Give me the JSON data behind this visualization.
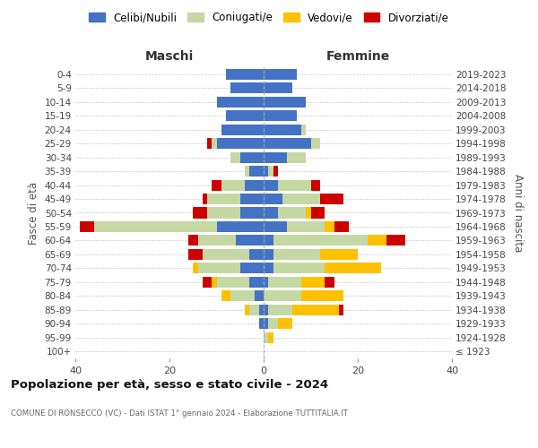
{
  "age_groups": [
    "100+",
    "95-99",
    "90-94",
    "85-89",
    "80-84",
    "75-79",
    "70-74",
    "65-69",
    "60-64",
    "55-59",
    "50-54",
    "45-49",
    "40-44",
    "35-39",
    "30-34",
    "25-29",
    "20-24",
    "15-19",
    "10-14",
    "5-9",
    "0-4"
  ],
  "birth_years": [
    "≤ 1923",
    "1924-1928",
    "1929-1933",
    "1934-1938",
    "1939-1943",
    "1944-1948",
    "1949-1953",
    "1954-1958",
    "1959-1963",
    "1964-1968",
    "1969-1973",
    "1974-1978",
    "1979-1983",
    "1984-1988",
    "1989-1993",
    "1994-1998",
    "1999-2003",
    "2004-2008",
    "2009-2013",
    "2014-2018",
    "2019-2023"
  ],
  "colors": {
    "celibi": "#4472c4",
    "coniugati": "#c5d8a4",
    "vedovi": "#ffc000",
    "divorziati": "#cc0000"
  },
  "maschi": {
    "celibi": [
      0,
      0,
      1,
      1,
      2,
      3,
      5,
      3,
      6,
      10,
      5,
      5,
      4,
      3,
      5,
      10,
      9,
      8,
      10,
      7,
      8
    ],
    "coniugati": [
      0,
      0,
      0,
      2,
      5,
      7,
      9,
      10,
      8,
      26,
      7,
      7,
      5,
      1,
      2,
      1,
      0,
      0,
      0,
      0,
      0
    ],
    "vedovi": [
      0,
      0,
      0,
      1,
      2,
      1,
      1,
      0,
      0,
      0,
      0,
      0,
      0,
      0,
      0,
      0,
      0,
      0,
      0,
      0,
      0
    ],
    "divorziati": [
      0,
      0,
      0,
      0,
      0,
      2,
      0,
      3,
      2,
      3,
      3,
      1,
      2,
      0,
      0,
      1,
      0,
      0,
      0,
      0,
      0
    ]
  },
  "femmine": {
    "nubili": [
      0,
      0,
      1,
      1,
      0,
      1,
      2,
      2,
      2,
      5,
      3,
      4,
      3,
      1,
      5,
      10,
      8,
      7,
      9,
      6,
      7
    ],
    "coniugate": [
      0,
      1,
      2,
      5,
      8,
      7,
      11,
      10,
      20,
      8,
      6,
      8,
      7,
      1,
      4,
      2,
      1,
      0,
      0,
      0,
      0
    ],
    "vedove": [
      0,
      1,
      3,
      10,
      9,
      5,
      12,
      8,
      4,
      2,
      1,
      0,
      0,
      0,
      0,
      0,
      0,
      0,
      0,
      0,
      0
    ],
    "divorziate": [
      0,
      0,
      0,
      1,
      0,
      2,
      0,
      0,
      4,
      3,
      3,
      5,
      2,
      1,
      0,
      0,
      0,
      0,
      0,
      0,
      0
    ]
  },
  "xlim": 40,
  "title": "Popolazione per età, sesso e stato civile - 2024",
  "subtitle": "COMUNE DI RONSECCO (VC) - Dati ISTAT 1° gennaio 2024 - Elaborazione TUTTITALIA.IT",
  "ylabel_left": "Fasce di età",
  "ylabel_right": "Anni di nascita",
  "xlabel_left": "Maschi",
  "xlabel_right": "Femmine",
  "legend_labels": [
    "Celibi/Nubili",
    "Coniugati/e",
    "Vedovi/e",
    "Divorziati/e"
  ],
  "background_color": "#ffffff",
  "grid_color": "#cccccc"
}
